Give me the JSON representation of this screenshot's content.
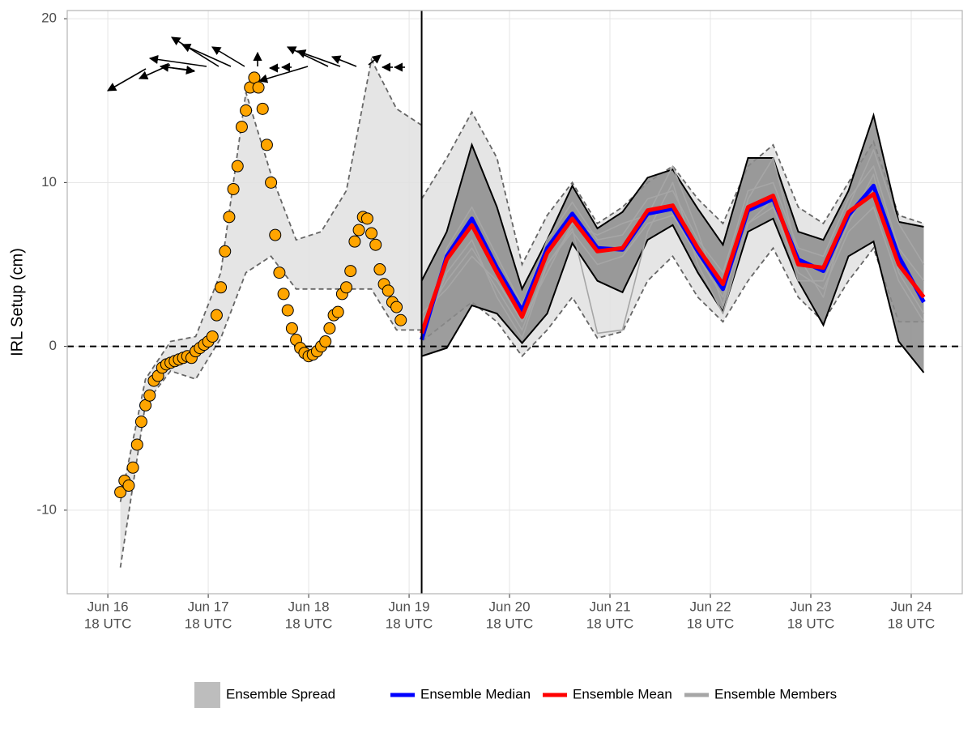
{
  "chart_data": {
    "type": "line",
    "ylabel": "IRL Setup (cm)",
    "xlim": [
      -9.7,
      204.2
    ],
    "ylim": [
      -15.1,
      20.5
    ],
    "xticks": [
      {
        "value": 0,
        "label": [
          "Jun 16",
          "18 UTC"
        ]
      },
      {
        "value": 24,
        "label": [
          "Jun 17",
          "18 UTC"
        ]
      },
      {
        "value": 48,
        "label": [
          "Jun 18",
          "18 UTC"
        ]
      },
      {
        "value": 72,
        "label": [
          "Jun 19",
          "18 UTC"
        ]
      },
      {
        "value": 96,
        "label": [
          "Jun 20",
          "18 UTC"
        ]
      },
      {
        "value": 120,
        "label": [
          "Jun 21",
          "18 UTC"
        ]
      },
      {
        "value": 144,
        "label": [
          "Jun 22",
          "18 UTC"
        ]
      },
      {
        "value": 168,
        "label": [
          "Jun 23",
          "18 UTC"
        ]
      },
      {
        "value": 192,
        "label": [
          "Jun 24",
          "18 UTC"
        ]
      }
    ],
    "yticks": [
      -10,
      0,
      10,
      20
    ],
    "grid": true,
    "reference_line": 0,
    "forecast_start": 75,
    "observed": {
      "color": "#ffa500",
      "x": [
        3,
        4,
        5,
        6,
        7,
        8,
        9,
        10,
        11,
        12,
        13,
        14,
        15,
        16,
        17,
        18,
        19,
        20,
        21,
        22,
        23,
        24,
        25,
        26,
        27,
        28,
        29,
        30,
        31,
        32,
        33,
        34,
        35,
        36,
        37,
        38,
        39,
        40,
        41,
        42,
        43,
        44,
        45,
        46,
        47,
        48,
        49,
        50,
        51,
        52,
        53,
        54,
        55,
        56,
        57,
        58,
        59,
        60,
        61,
        62,
        63,
        64,
        65,
        66,
        67,
        68,
        69,
        70
      ],
      "values": [
        -8.9,
        -8.2,
        -8.5,
        -7.4,
        -6.0,
        -4.6,
        -3.6,
        -3.0,
        -2.1,
        -1.8,
        -1.3,
        -1.1,
        -1.0,
        -0.9,
        -0.8,
        -0.7,
        -0.6,
        -0.7,
        -0.3,
        -0.1,
        0.1,
        0.3,
        0.6,
        1.9,
        3.6,
        5.8,
        7.9,
        9.6,
        11.0,
        13.4,
        14.4,
        15.8,
        16.4,
        15.8,
        14.5,
        12.3,
        10.0,
        6.8,
        4.5,
        3.2,
        2.2,
        1.1,
        0.4,
        -0.1,
        -0.4,
        -0.6,
        -0.5,
        -0.3,
        0.0,
        0.3,
        1.1,
        1.9,
        2.1,
        3.2,
        3.6,
        4.6,
        6.4,
        7.1,
        7.9,
        7.8,
        6.9,
        6.2,
        4.7,
        3.8,
        3.4,
        2.7,
        2.4,
        1.6
      ]
    },
    "hindcast_spread": {
      "color": "#e0e0e0",
      "x": [
        3,
        9,
        15,
        21,
        27,
        33,
        39,
        45,
        51,
        57,
        63,
        69,
        75
      ],
      "upper": [
        -9.5,
        -2.0,
        0.3,
        0.6,
        4.5,
        15.5,
        10.5,
        6.5,
        7.0,
        9.5,
        17.5,
        14.5,
        13.5
      ],
      "lower": [
        -13.5,
        -3.5,
        -1.5,
        -2.0,
        0.5,
        4.5,
        5.5,
        3.5,
        3.5,
        3.5,
        3.5,
        1.0,
        1.0
      ]
    },
    "forecast_x": [
      75,
      81,
      87,
      93,
      99,
      105,
      111,
      117,
      123,
      129,
      135,
      141,
      147,
      153,
      159,
      165,
      171,
      177,
      183,
      189,
      195
    ],
    "spread_outer": {
      "name": "Ensemble Spread",
      "color": "#e0e0e0",
      "upper": [
        9.0,
        11.5,
        14.3,
        11.5,
        5.0,
        8.0,
        10.0,
        7.5,
        8.5,
        10.0,
        11.0,
        9.0,
        7.5,
        11.0,
        12.3,
        8.5,
        7.5,
        10.0,
        12.5,
        8.0,
        7.5
      ],
      "lower": [
        0.3,
        1.5,
        2.7,
        1.5,
        -0.6,
        1.0,
        3.0,
        0.5,
        0.9,
        4.0,
        5.5,
        3.0,
        1.5,
        4.0,
        6.0,
        3.0,
        1.5,
        4.0,
        6.0,
        1.5,
        1.5
      ]
    },
    "spread_inner": {
      "color": "#8c8c8c",
      "upper": [
        4.0,
        7.0,
        12.3,
        8.5,
        3.5,
        6.5,
        9.8,
        7.2,
        8.2,
        10.3,
        10.8,
        8.4,
        6.2,
        11.5,
        11.5,
        7.0,
        6.5,
        9.5,
        14.1,
        7.6,
        7.3
      ],
      "lower": [
        -0.6,
        -0.1,
        2.5,
        2.0,
        0.2,
        2.0,
        6.3,
        4.0,
        3.3,
        6.5,
        7.4,
        4.5,
        2.1,
        7.0,
        7.8,
        4.0,
        1.3,
        5.5,
        6.4,
        0.3,
        -1.6
      ]
    },
    "members": {
      "name": "Ensemble Members",
      "color": "#a6a6a6",
      "values": [
        [
          1.5,
          4.0,
          6.0,
          3.5,
          1.0,
          5.0,
          7.0,
          5.0,
          5.5,
          7.5,
          8.0,
          5.5,
          3.0,
          7.5,
          8.5,
          4.5,
          3.5,
          7.0,
          8.5,
          4.0,
          1.5
        ],
        [
          0.2,
          6.0,
          8.5,
          5.5,
          2.5,
          6.5,
          8.8,
          6.5,
          6.8,
          9.0,
          9.5,
          6.5,
          4.5,
          9.5,
          10.0,
          6.0,
          5.5,
          9.0,
          11.0,
          6.0,
          4.0
        ],
        [
          2.0,
          3.5,
          5.5,
          4.0,
          1.5,
          4.5,
          7.5,
          6.8,
          7.5,
          8.0,
          11.0,
          7.0,
          2.5,
          9.0,
          11.5,
          5.5,
          3.0,
          8.5,
          12.0,
          7.5,
          5.0
        ],
        [
          0.5,
          4.5,
          6.5,
          3.0,
          0.5,
          5.0,
          7.2,
          0.8,
          1.0,
          7.0,
          10.0,
          5.0,
          2.0,
          7.5,
          9.0,
          4.0,
          4.0,
          7.5,
          10.5,
          4.5,
          2.0
        ]
      ]
    },
    "series": [
      {
        "name": "Ensemble Median",
        "color": "#0000ff",
        "values": [
          0.4,
          5.5,
          7.8,
          4.8,
          2.2,
          6.0,
          8.1,
          6.0,
          5.9,
          8.1,
          8.4,
          5.8,
          3.5,
          8.3,
          9.0,
          5.3,
          4.6,
          8.0,
          9.8,
          5.5,
          2.7
        ]
      },
      {
        "name": "Ensemble Mean",
        "color": "#ff0000",
        "values": [
          0.8,
          5.3,
          7.4,
          4.5,
          1.8,
          5.7,
          7.8,
          5.8,
          6.0,
          8.3,
          8.6,
          6.0,
          3.8,
          8.5,
          9.2,
          5.0,
          4.8,
          8.2,
          9.3,
          5.0,
          3.0
        ]
      }
    ]
  }
}
